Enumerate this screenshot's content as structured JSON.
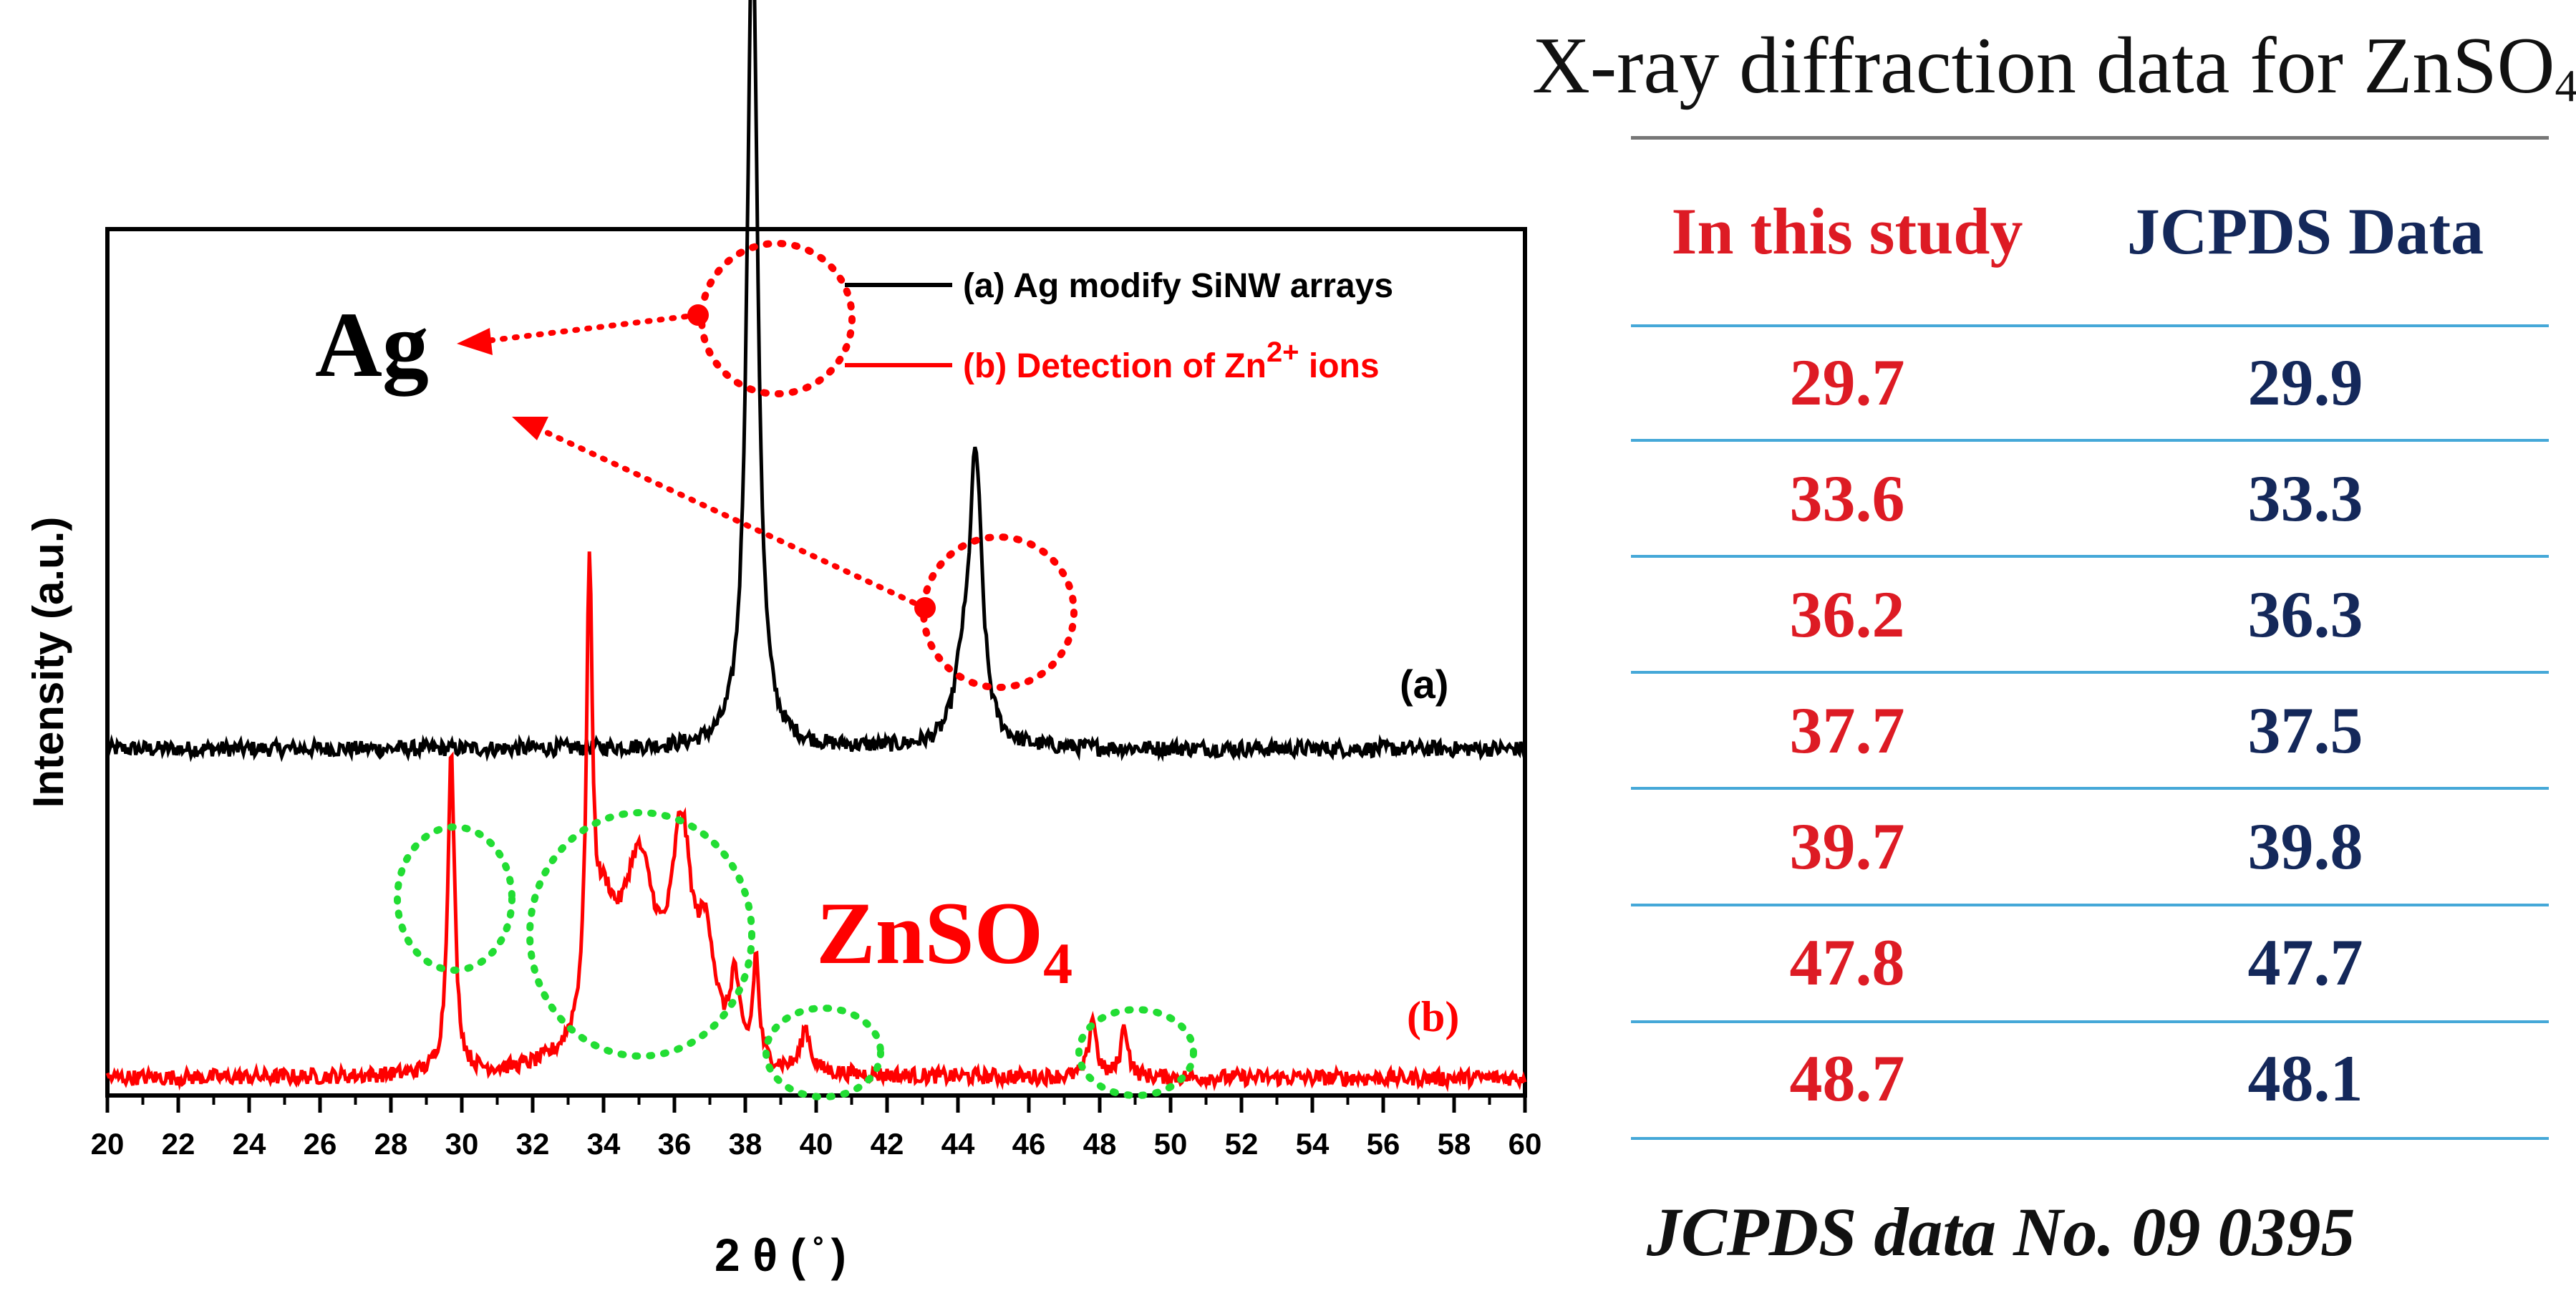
{
  "chart_data": {
    "type": "line",
    "xlabel": "2 θ ( ̊ )",
    "ylabel": "Intensity (a.u.)",
    "xlim": [
      20,
      60
    ],
    "x_ticks": [
      20,
      22,
      24,
      26,
      28,
      30,
      32,
      34,
      36,
      38,
      40,
      42,
      44,
      46,
      48,
      50,
      52,
      54,
      56,
      58,
      60
    ],
    "grid": false,
    "legend_position": "top-right",
    "series": [
      {
        "name": "(a) Ag modify SiNW arrays",
        "label": "(a)",
        "color": "#000000",
        "baseline": 0.4,
        "peaks": [
          {
            "x": 38.2,
            "height": 0.97,
            "width": 0.18
          },
          {
            "x": 44.5,
            "height": 0.33,
            "width": 0.22
          },
          {
            "x": 44.1,
            "height": 0.06,
            "width": 0.25
          }
        ]
      },
      {
        "name": "(b) Detection of Zn2+ ions",
        "label": "(b)",
        "color": "#ff0000",
        "baseline": 0.02,
        "peaks": [
          {
            "x": 29.7,
            "height": 0.37,
            "width": 0.12
          },
          {
            "x": 33.6,
            "height": 0.49,
            "width": 0.1
          },
          {
            "x": 34.0,
            "height": 0.14,
            "width": 0.45
          },
          {
            "x": 35.0,
            "height": 0.22,
            "width": 0.6
          },
          {
            "x": 36.2,
            "height": 0.24,
            "width": 0.35
          },
          {
            "x": 36.9,
            "height": 0.12,
            "width": 0.3
          },
          {
            "x": 37.7,
            "height": 0.09,
            "width": 0.15
          },
          {
            "x": 38.3,
            "height": 0.12,
            "width": 0.1
          },
          {
            "x": 39.7,
            "height": 0.05,
            "width": 0.15
          },
          {
            "x": 47.8,
            "height": 0.07,
            "width": 0.12
          },
          {
            "x": 48.7,
            "height": 0.06,
            "width": 0.12
          }
        ]
      }
    ],
    "annotations": {
      "ag_label": "Ag",
      "znso4_main": "ZnSO",
      "znso4_sub": "4",
      "legend_a": "(a) Ag modify SiNW arrays",
      "legend_b_prefix": "(b) Detection of Zn",
      "legend_b_sup": "2+",
      "legend_b_suffix": " ions"
    }
  },
  "table": {
    "title_main": "X-ray diffraction  data for ZnSO",
    "title_sub": "4",
    "col_study": "In this study",
    "col_jcpds": "JCPDS Data",
    "rows": [
      {
        "study": "29.7",
        "jcpds": "29.9"
      },
      {
        "study": "33.6",
        "jcpds": "33.3"
      },
      {
        "study": "36.2",
        "jcpds": "36.3"
      },
      {
        "study": "37.7",
        "jcpds": "37.5"
      },
      {
        "study": "39.7",
        "jcpds": "39.8"
      },
      {
        "study": "47.8",
        "jcpds": "47.7"
      },
      {
        "study": "48.7",
        "jcpds": "48.1"
      }
    ],
    "footnote": "JCPDS data  No. 09 0395",
    "colors": {
      "study": "#dd1b24",
      "jcpds": "#14285a",
      "rule": "#45a8d8"
    }
  }
}
